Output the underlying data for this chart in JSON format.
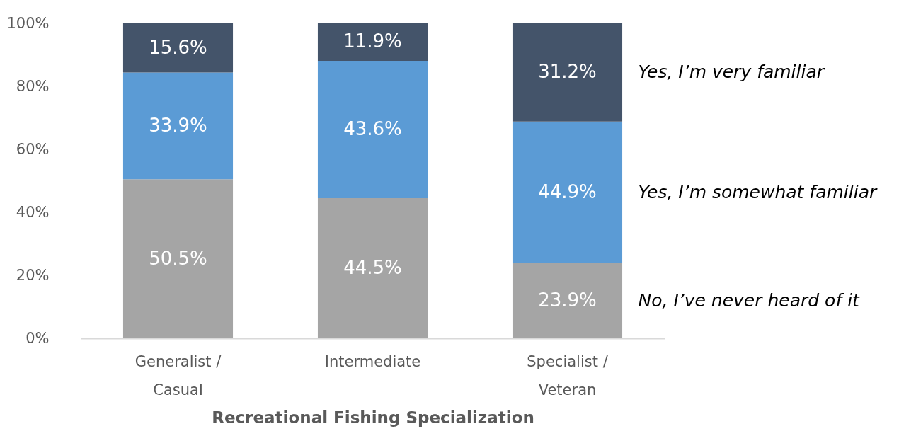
{
  "chart_data": {
    "type": "bar",
    "stacked": true,
    "xlabel": "Recreational Fishing Specialization",
    "categories": [
      "Generalist /\nCasual",
      "Intermediate",
      "Specialist /\nVeteran"
    ],
    "series": [
      {
        "name": "No, I’ve never heard of it",
        "color": "#a5a5a5",
        "values": [
          50.5,
          44.5,
          23.9
        ],
        "value_labels": [
          "50.5%",
          "44.5%",
          "23.9%"
        ]
      },
      {
        "name": "Yes, I’m somewhat familiar",
        "color": "#5b9bd5",
        "values": [
          33.9,
          43.6,
          44.9
        ],
        "value_labels": [
          "33.9%",
          "43.6%",
          "44.9%"
        ]
      },
      {
        "name": "Yes, I’m very familiar",
        "color": "#44546a",
        "values": [
          15.6,
          11.9,
          31.2
        ],
        "value_labels": [
          "15.6%",
          "11.9%",
          "31.2%"
        ]
      }
    ],
    "ylim": [
      0,
      100
    ],
    "yticks": [
      {
        "value": 0,
        "label": "0%"
      },
      {
        "value": 20,
        "label": "20%"
      },
      {
        "value": 40,
        "label": "40%"
      },
      {
        "value": 60,
        "label": "60%"
      },
      {
        "value": 80,
        "label": "80%"
      },
      {
        "value": 100,
        "label": "100%"
      }
    ],
    "grid": false,
    "legend": "right"
  }
}
